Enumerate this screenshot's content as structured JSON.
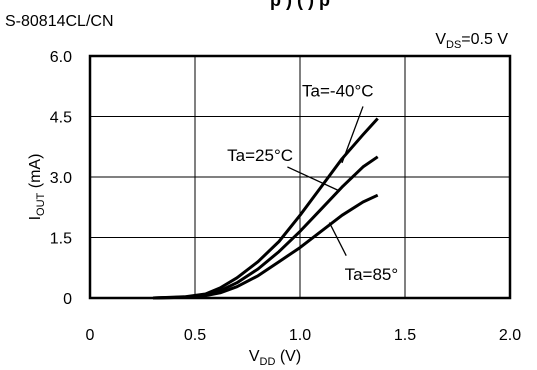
{
  "chart_data": {
    "type": "line",
    "device": "S-80814CL/CN",
    "condition": {
      "main": "V",
      "sub": "DS",
      "value": "=0.5 V"
    },
    "title_fragment": "p    ) (     )   p",
    "xlabel": {
      "main": "V",
      "sub": "DD",
      "unit": " (V)"
    },
    "ylabel": {
      "main": "I",
      "sub": "OUT",
      "unit": " (mA)"
    },
    "xlim": [
      0,
      2.0
    ],
    "ylim": [
      0,
      6.0
    ],
    "x_ticks": [
      {
        "value": 0,
        "label": "0"
      },
      {
        "value": 0.5,
        "label": "0.5"
      },
      {
        "value": 1.0,
        "label": "1.0"
      },
      {
        "value": 1.5,
        "label": "1.5"
      },
      {
        "value": 2.0,
        "label": "2.0"
      }
    ],
    "y_ticks": [
      {
        "value": 0,
        "label": "0"
      },
      {
        "value": 1.5,
        "label": "1.5"
      },
      {
        "value": 3.0,
        "label": "3.0"
      },
      {
        "value": 4.5,
        "label": "4.5"
      },
      {
        "value": 6.0,
        "label": "6.0"
      }
    ],
    "grid": true,
    "series": [
      {
        "name": "Ta=-40°C",
        "x": [
          0.3,
          0.45,
          0.55,
          0.62,
          0.7,
          0.8,
          0.9,
          1.0,
          1.1,
          1.2,
          1.3,
          1.37
        ],
        "y": [
          0.0,
          0.03,
          0.1,
          0.25,
          0.5,
          0.9,
          1.4,
          2.05,
          2.75,
          3.45,
          4.05,
          4.45
        ]
      },
      {
        "name": "Ta=25°C",
        "x": [
          0.3,
          0.45,
          0.55,
          0.62,
          0.7,
          0.8,
          0.9,
          1.0,
          1.1,
          1.2,
          1.3,
          1.37
        ],
        "y": [
          0.0,
          0.02,
          0.07,
          0.18,
          0.38,
          0.72,
          1.15,
          1.65,
          2.2,
          2.75,
          3.25,
          3.5
        ]
      },
      {
        "name": "Ta=85°",
        "x": [
          0.3,
          0.45,
          0.55,
          0.62,
          0.7,
          0.8,
          0.9,
          1.0,
          1.1,
          1.2,
          1.3,
          1.37
        ],
        "y": [
          0.0,
          0.02,
          0.06,
          0.13,
          0.28,
          0.55,
          0.9,
          1.25,
          1.65,
          2.05,
          2.38,
          2.55
        ]
      }
    ],
    "annotations": [
      {
        "series": "Ta=-40°C",
        "label": "Ta=-40°C",
        "text_at": [
          1.18,
          5.0
        ],
        "text_anchor": "middle",
        "pointer_from": [
          1.3,
          4.75
        ],
        "pointer_to": [
          1.2,
          3.35
        ]
      },
      {
        "series": "Ta=25°C",
        "label": "Ta=25°C",
        "text_at": [
          0.81,
          3.4
        ],
        "text_anchor": "middle",
        "pointer_from": [
          0.94,
          3.25
        ],
        "pointer_to": [
          1.19,
          2.65
        ]
      },
      {
        "series": "Ta=85°",
        "label": "Ta=85°",
        "text_at": [
          1.34,
          0.45
        ],
        "text_anchor": "middle",
        "pointer_from": [
          1.22,
          1.05
        ],
        "pointer_to": [
          1.14,
          1.87
        ]
      }
    ]
  }
}
